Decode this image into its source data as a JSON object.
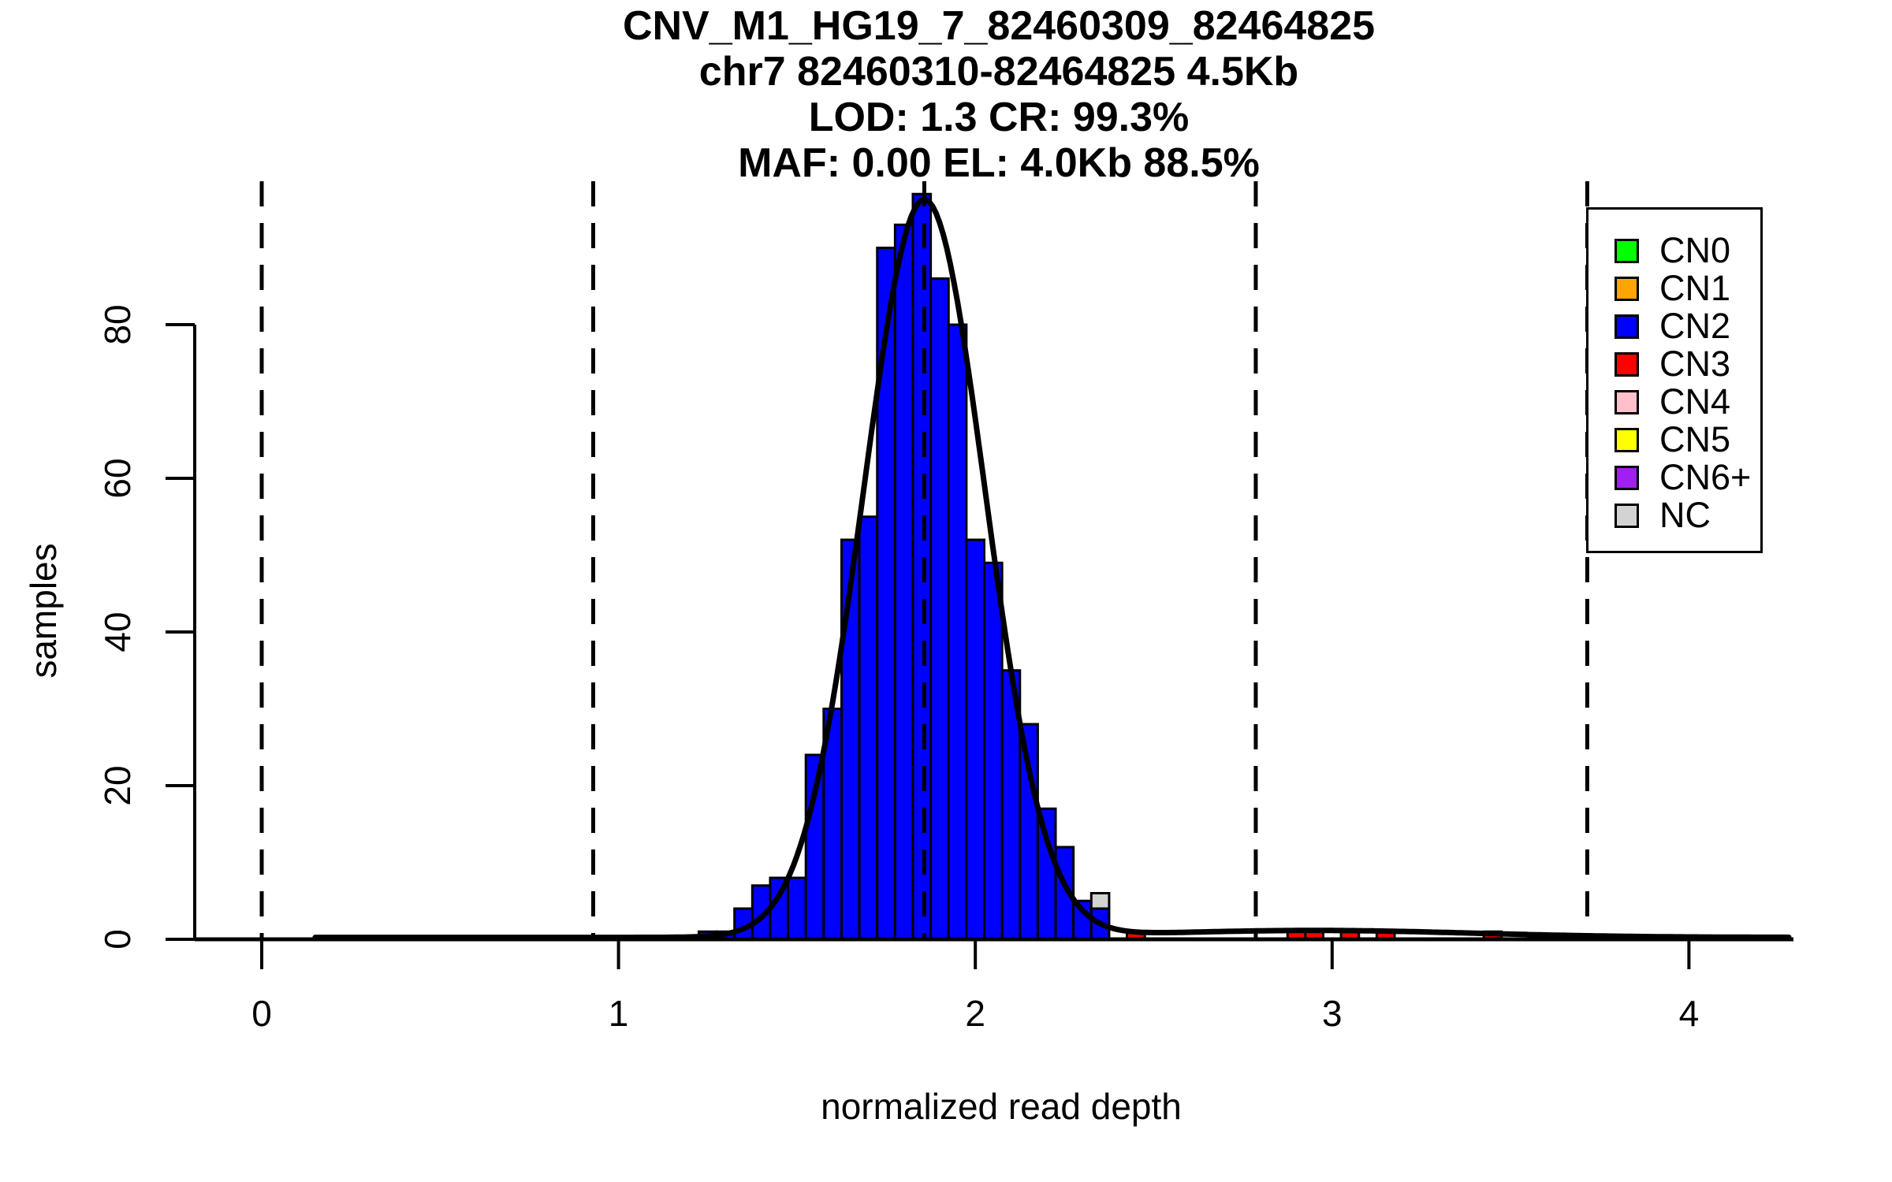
{
  "figure": {
    "title_lines": [
      "CNV_M1_HG19_7_82460309_82464825",
      "chr7 82460310-82464825 4.5Kb",
      "LOD: 1.3 CR: 99.3%",
      "MAF: 0.00 EL: 4.0Kb 88.5%"
    ]
  },
  "colors": {
    "CN0": "#00FF00",
    "CN1": "#FFA500",
    "CN2": "#0000FF",
    "CN3": "#FF0000",
    "CN4": "#FFC0CB",
    "CN5": "#FFFF00",
    "CN6+": "#A020F0",
    "NC": "#D3D3D3",
    "axis": "#000000",
    "curve": "#000000"
  },
  "chart_data": {
    "type": "bar",
    "subtype": "histogram-with-density-curve",
    "title": "CNV_M1_HG19_7_82460309_82464825",
    "xlabel": "normalized read depth",
    "ylabel": "samples",
    "x_ticks": [
      0,
      1,
      2,
      3,
      4
    ],
    "y_ticks": [
      0,
      20,
      40,
      60,
      80
    ],
    "xlim": [
      -0.19,
      4.3
    ],
    "ylim": [
      0,
      97
    ],
    "grid": false,
    "legend_position": "top-right",
    "bin_width": 0.05,
    "dashed_lines_x": [
      0,
      0.929,
      1.857,
      2.786,
      3.715
    ],
    "bars": [
      {
        "x": 1.225,
        "h": 1,
        "cn": "CN2"
      },
      {
        "x": 1.275,
        "h": 1,
        "cn": "CN2"
      },
      {
        "x": 1.325,
        "h": 4,
        "cn": "CN2"
      },
      {
        "x": 1.375,
        "h": 7,
        "cn": "CN2"
      },
      {
        "x": 1.425,
        "h": 8,
        "cn": "CN2"
      },
      {
        "x": 1.475,
        "h": 8,
        "cn": "CN2"
      },
      {
        "x": 1.525,
        "h": 24,
        "cn": "CN2"
      },
      {
        "x": 1.575,
        "h": 30,
        "cn": "CN2"
      },
      {
        "x": 1.625,
        "h": 52,
        "cn": "CN2"
      },
      {
        "x": 1.675,
        "h": 55,
        "cn": "CN2"
      },
      {
        "x": 1.725,
        "h": 90,
        "cn": "CN2"
      },
      {
        "x": 1.775,
        "h": 93,
        "cn": "CN2"
      },
      {
        "x": 1.825,
        "h": 97,
        "cn": "CN2"
      },
      {
        "x": 1.875,
        "h": 86,
        "cn": "CN2"
      },
      {
        "x": 1.925,
        "h": 80,
        "cn": "CN2"
      },
      {
        "x": 1.975,
        "h": 52,
        "cn": "CN2"
      },
      {
        "x": 2.025,
        "h": 49,
        "cn": "CN2"
      },
      {
        "x": 2.075,
        "h": 35,
        "cn": "CN2"
      },
      {
        "x": 2.125,
        "h": 28,
        "cn": "CN2"
      },
      {
        "x": 2.175,
        "h": 17,
        "cn": "CN2"
      },
      {
        "x": 2.225,
        "h": 12,
        "cn": "CN2"
      },
      {
        "x": 2.275,
        "h": 5,
        "cn": "CN2"
      },
      {
        "x": 2.325,
        "h": 4,
        "cn": "CN2"
      },
      {
        "x": 2.325,
        "h": 2,
        "base": 4,
        "cn": "NC"
      },
      {
        "x": 2.425,
        "h": 1,
        "cn": "CN3"
      },
      {
        "x": 2.875,
        "h": 1,
        "cn": "CN3"
      },
      {
        "x": 2.925,
        "h": 1,
        "cn": "CN3"
      },
      {
        "x": 3.025,
        "h": 1,
        "cn": "CN3"
      },
      {
        "x": 3.125,
        "h": 1,
        "cn": "CN3"
      },
      {
        "x": 3.425,
        "h": 1,
        "cn": "CN3"
      }
    ],
    "density_curve": {
      "mean": 1.857,
      "sd": 0.17,
      "amplitude": 96,
      "tail_bump": {
        "mean": 2.95,
        "sd": 0.45,
        "amplitude": 0.9
      },
      "baseline": 0.25,
      "x_start": 0.15,
      "x_end": 4.28
    },
    "legend": {
      "items": [
        {
          "label": "CN0"
        },
        {
          "label": "CN1"
        },
        {
          "label": "CN2"
        },
        {
          "label": "CN3"
        },
        {
          "label": "CN4"
        },
        {
          "label": "CN5"
        },
        {
          "label": "CN6+"
        },
        {
          "label": "NC"
        }
      ]
    }
  }
}
